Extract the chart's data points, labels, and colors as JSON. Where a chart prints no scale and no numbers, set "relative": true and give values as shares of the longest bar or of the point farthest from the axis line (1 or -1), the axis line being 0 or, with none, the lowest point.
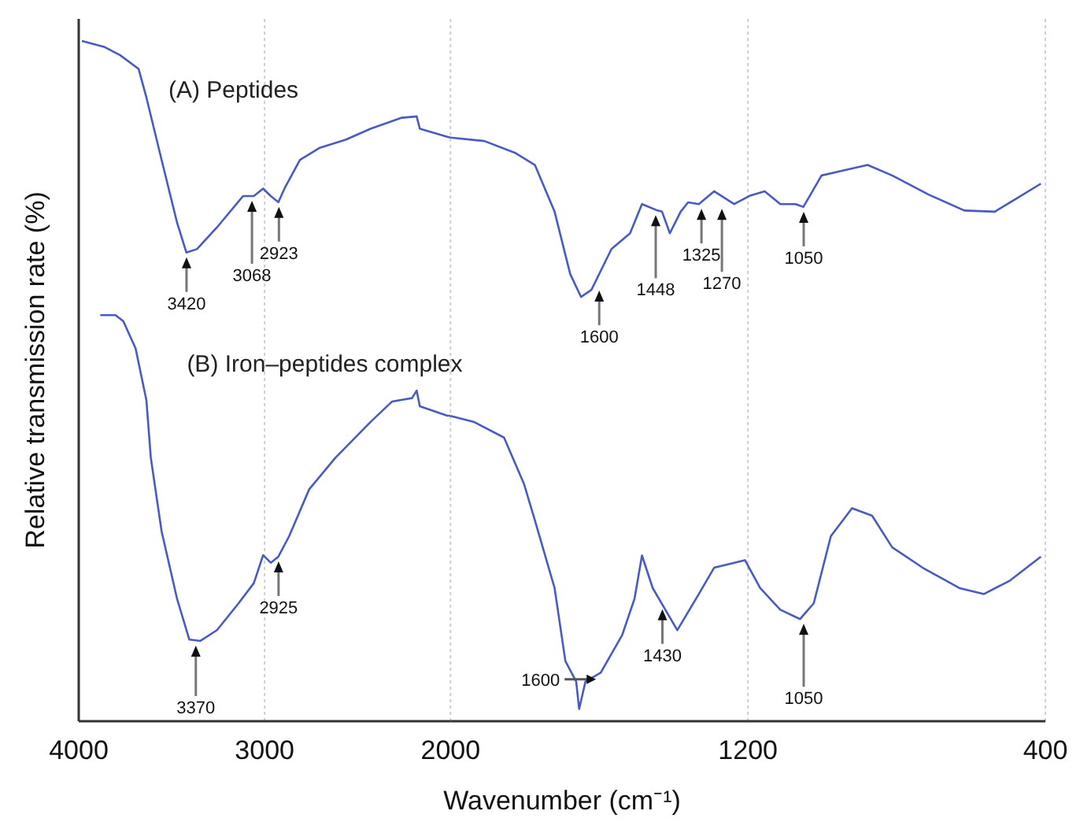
{
  "chart_data": [
    {
      "type": "line",
      "relative": true,
      "xlabel": "Wavenumber (cm⁻¹)",
      "ylabel": "Relative transmission rate (%)",
      "xlim": [
        4000,
        2000
      ],
      "xticks": [
        4000,
        3000,
        2000
      ],
      "grid": "x",
      "line_style": "solid",
      "series": [
        {
          "name": "(A) Peptides",
          "color": "#4a5ac4",
          "x": [
            3983,
            3860,
            3777,
            3678,
            3636,
            3554,
            3471,
            3421,
            3364,
            3256,
            3116,
            3058,
            3008,
            2967,
            2926,
            2893,
            2810,
            2703,
            2562,
            2430,
            2265,
            2182,
            2165,
            2017,
            2000
          ],
          "values": [
            1.0,
            0.991,
            0.979,
            0.959,
            0.917,
            0.825,
            0.733,
            0.689,
            0.694,
            0.726,
            0.772,
            0.772,
            0.783,
            0.772,
            0.763,
            0.783,
            0.825,
            0.843,
            0.855,
            0.871,
            0.887,
            0.889,
            0.871,
            0.859,
            0.858
          ]
        },
        {
          "name": "(B) Iron–peptides complex",
          "color": "#4a5ac4",
          "x": [
            3884,
            3802,
            3760,
            3694,
            3636,
            3612,
            3554,
            3471,
            3405,
            3347,
            3256,
            3141,
            3058,
            3008,
            2967,
            2926,
            2868,
            2760,
            2620,
            2430,
            2314,
            2207,
            2182,
            2165,
            2017,
            2000
          ],
          "values": [
            0.597,
            0.597,
            0.588,
            0.548,
            0.472,
            0.387,
            0.279,
            0.18,
            0.12,
            0.118,
            0.134,
            0.173,
            0.203,
            0.244,
            0.233,
            0.242,
            0.272,
            0.341,
            0.387,
            0.44,
            0.47,
            0.475,
            0.486,
            0.463,
            0.449,
            0.449
          ]
        }
      ],
      "annotations": [
        {
          "text": "3420",
          "x": 3420,
          "y": 0.689
        },
        {
          "text": "3068",
          "x": 3068,
          "y": 0.772
        },
        {
          "text": "2923",
          "x": 2923,
          "y": 0.763
        },
        {
          "text": "3370",
          "x": 3370,
          "y": 0.118
        },
        {
          "text": "2925",
          "x": 2925,
          "y": 0.242
        }
      ]
    },
    {
      "type": "line",
      "relative": true,
      "xlim": [
        2000,
        400
      ],
      "xticks": [
        1200,
        400
      ],
      "grid": "x",
      "line_style": "solid",
      "series": [
        {
          "color": "#4a5ac4",
          "x": [
            2000,
            1909,
            1827,
            1773,
            1720,
            1678,
            1649,
            1621,
            1567,
            1517,
            1485,
            1443,
            1431,
            1410,
            1381,
            1361,
            1332,
            1291,
            1237,
            1196,
            1155,
            1113,
            1072,
            1051,
            1002,
            948,
            878,
            812,
            713,
            618,
            536,
            482,
            412
          ],
          "values": [
            1.0,
            0.994,
            0.974,
            0.953,
            0.873,
            0.766,
            0.727,
            0.739,
            0.809,
            0.836,
            0.886,
            0.875,
            0.873,
            0.836,
            0.873,
            0.889,
            0.886,
            0.908,
            0.886,
            0.9,
            0.908,
            0.886,
            0.886,
            0.881,
            0.935,
            0.943,
            0.953,
            0.935,
            0.902,
            0.875,
            0.873,
            0.894,
            0.921
          ]
        },
        {
          "color": "#4a5ac4",
          "x": [
            2000,
            1938,
            1856,
            1802,
            1773,
            1720,
            1691,
            1662,
            1654,
            1637,
            1596,
            1538,
            1505,
            1485,
            1456,
            1390,
            1332,
            1291,
            1208,
            1167,
            1113,
            1060,
            1023,
            977,
            920,
            866,
            812,
            730,
            631,
            565,
            495,
            412
          ],
          "values": [
            0.523,
            0.513,
            0.486,
            0.406,
            0.344,
            0.228,
            0.103,
            0.068,
            0.021,
            0.068,
            0.083,
            0.148,
            0.21,
            0.284,
            0.228,
            0.156,
            0.218,
            0.263,
            0.276,
            0.228,
            0.191,
            0.175,
            0.202,
            0.317,
            0.365,
            0.352,
            0.298,
            0.263,
            0.228,
            0.218,
            0.241,
            0.282
          ]
        }
      ],
      "annotations": [
        {
          "text": "1600",
          "x": 1600,
          "y": 0.746
        },
        {
          "text": "1448",
          "x": 1448,
          "y": 0.875
        },
        {
          "text": "1325",
          "x": 1325,
          "y": 0.886
        },
        {
          "text": "1270",
          "x": 1270,
          "y": 0.886
        },
        {
          "text": "1050",
          "x": 1050,
          "y": 0.881
        },
        {
          "text": "1600",
          "x": 1600,
          "y": 0.08
        },
        {
          "text": "1430",
          "x": 1430,
          "y": 0.2
        },
        {
          "text": "1050",
          "x": 1050,
          "y": 0.175
        }
      ]
    }
  ]
}
